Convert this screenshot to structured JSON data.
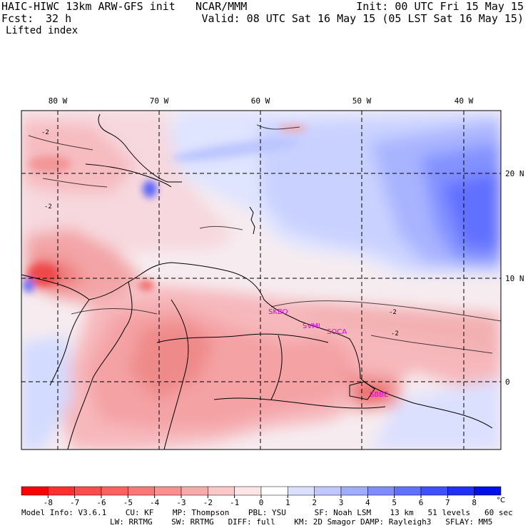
{
  "header": {
    "model_title": "HAIC-HIWC 13km ARW-GFS init",
    "org": "NCAR/MMM",
    "init": "Init: 00 UTC Fri 15 May 15",
    "fcst_label": "Fcst:",
    "fcst_value": "32 h",
    "valid": "Valid: 08 UTC Sat 16 May 15 (05 LST Sat 16 May 15)",
    "field": "Lifted index"
  },
  "map": {
    "lon_labels": [
      "80 W",
      "70 W",
      "60 W",
      "50 W",
      "40 W"
    ],
    "lat_labels": [
      "20 N",
      "10 N",
      "0"
    ],
    "stations": [
      "SKBO",
      "SVMI",
      "SOCA",
      "SBBE"
    ],
    "contour_labels": [
      "-2",
      "-2",
      "-2",
      "-2"
    ]
  },
  "colorbar": {
    "ticks": [
      "-8",
      "-7",
      "-6",
      "-5",
      "-4",
      "-3",
      "-2",
      "-1",
      "0",
      "1",
      "2",
      "3",
      "4",
      "5",
      "6",
      "7",
      "8"
    ],
    "unit": "°C",
    "colors": [
      "#ff0000",
      "#ff3030",
      "#ff4c4c",
      "#ff6060",
      "#fa7878",
      "#fa9090",
      "#f8aaaa",
      "#fac8c8",
      "#ffe6e6",
      "#ffffff",
      "#dce0ff",
      "#c0c8ff",
      "#a0acff",
      "#7f8cff",
      "#6070ff",
      "#4050ff",
      "#2030f8",
      "#0010e8"
    ]
  },
  "footer": {
    "line1": "Model Info: V3.6.1    CU: KF    MP: Thompson    PBL: YSU      SF: Noah LSM    13 km   51 levels   60 sec",
    "line2": "LW: RRTMG    SW: RRTMG   DIFF: full    KM: 2D Smagor DAMP: Rayleigh3   SFLAY: MM5"
  }
}
